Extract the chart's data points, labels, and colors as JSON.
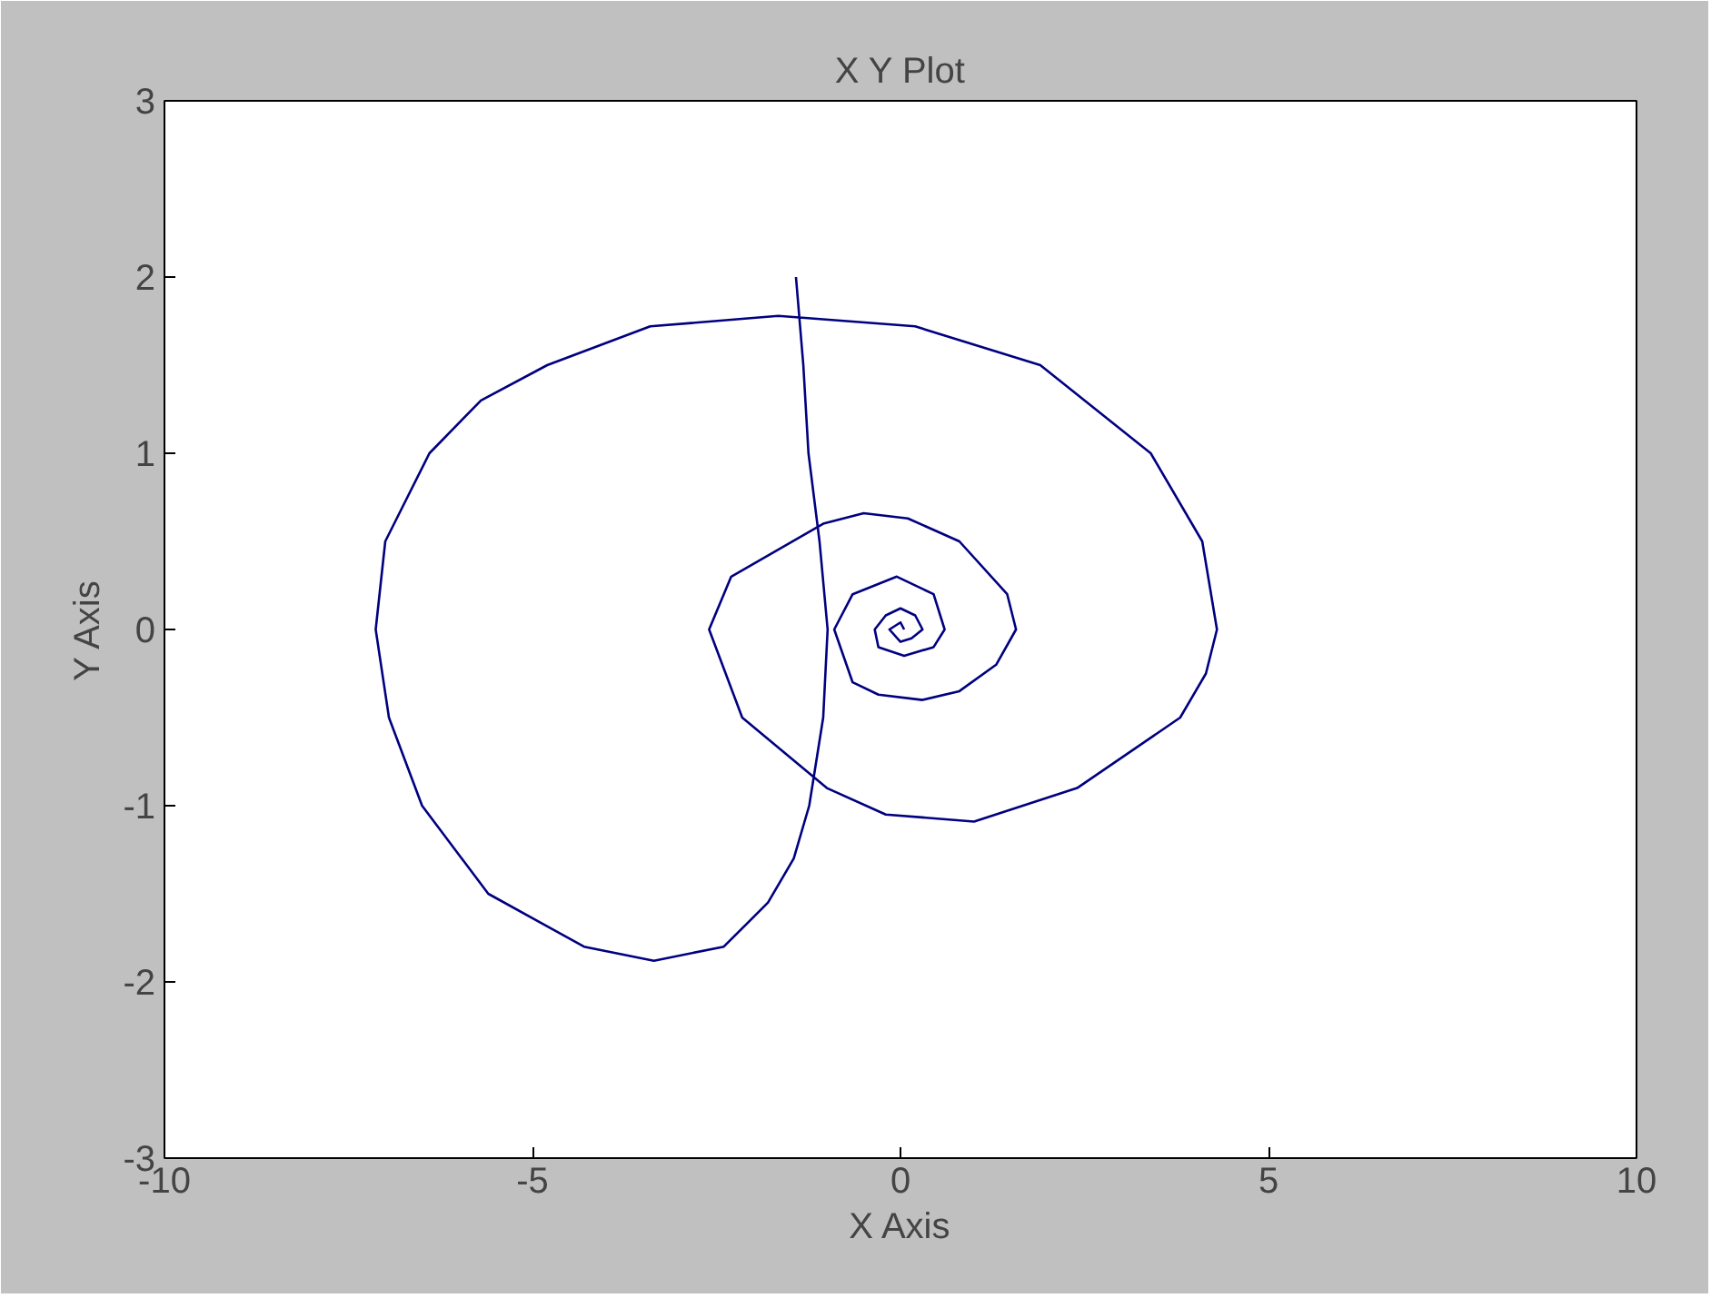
{
  "chart_data": {
    "type": "line",
    "title": "X Y Plot",
    "xlabel": "X Axis",
    "ylabel": "Y Axis",
    "xlim": [
      -10,
      10
    ],
    "ylim": [
      -3,
      3
    ],
    "xticks": [
      -10,
      -5,
      0,
      5,
      10
    ],
    "yticks": [
      -3,
      -2,
      -1,
      0,
      1,
      2,
      3
    ],
    "grid": false,
    "series": [
      {
        "color": "#000080",
        "x": [
          -1.42,
          -1.32,
          -1.25,
          -1.1,
          -0.99,
          -1.05,
          -1.24,
          -1.45,
          -1.8,
          -2.4,
          -3.35,
          -4.3,
          -5.6,
          -6.5,
          -6.95,
          -7.13,
          -7.0,
          -6.4,
          -5.7,
          -4.8,
          -3.4,
          -1.66,
          0.2,
          1.9,
          3.4,
          4.1,
          4.3,
          4.15,
          3.8,
          2.4,
          1.0,
          -0.2,
          -1.0,
          -2.15,
          -2.6,
          -2.3,
          -1.05,
          -0.5,
          0.1,
          0.8,
          1.45,
          1.57,
          1.3,
          0.8,
          0.3,
          -0.3,
          -0.65,
          -0.9,
          -0.65,
          -0.05,
          0.45,
          0.6,
          0.45,
          0.05,
          -0.3,
          -0.35,
          -0.2,
          0.0,
          0.2,
          0.3,
          0.15,
          0.0,
          -0.15,
          0.0,
          0.05
        ],
        "values": [
          2.0,
          1.5,
          1.0,
          0.5,
          0.0,
          -0.5,
          -1.0,
          -1.3,
          -1.55,
          -1.8,
          -1.88,
          -1.8,
          -1.5,
          -1.0,
          -0.5,
          0.0,
          0.5,
          1.0,
          1.3,
          1.5,
          1.72,
          1.78,
          1.72,
          1.5,
          1.0,
          0.5,
          0.0,
          -0.25,
          -0.5,
          -0.9,
          -1.09,
          -1.05,
          -0.9,
          -0.5,
          0.0,
          0.3,
          0.6,
          0.66,
          0.63,
          0.5,
          0.2,
          0.0,
          -0.2,
          -0.35,
          -0.4,
          -0.37,
          -0.3,
          0.0,
          0.2,
          0.3,
          0.2,
          0.0,
          -0.1,
          -0.15,
          -0.1,
          0.0,
          0.08,
          0.12,
          0.08,
          0.0,
          -0.05,
          -0.07,
          0.0,
          0.04,
          0.0
        ]
      }
    ]
  }
}
